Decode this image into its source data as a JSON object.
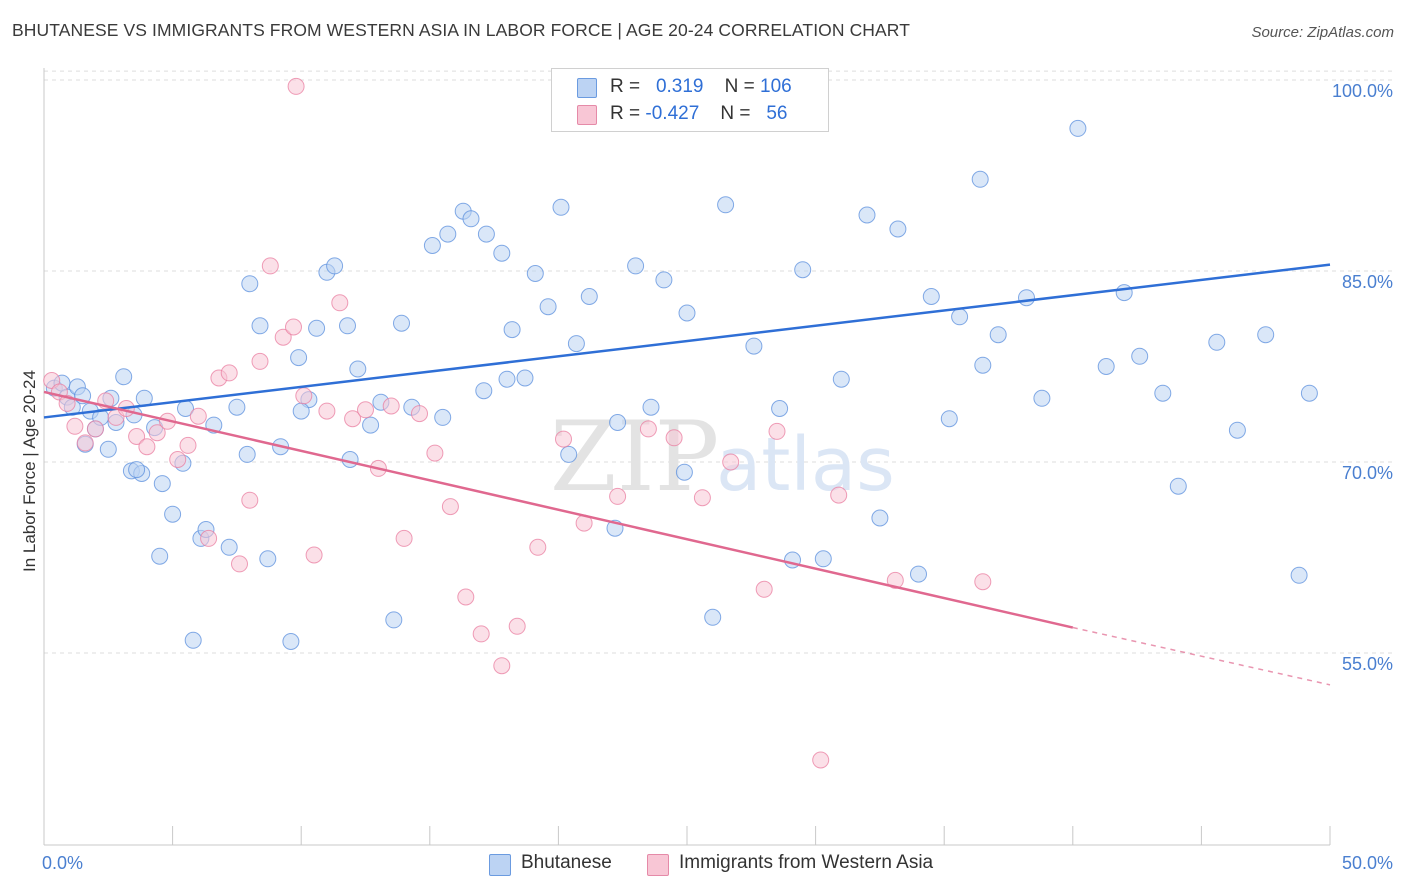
{
  "title": "BHUTANESE VS IMMIGRANTS FROM WESTERN ASIA IN LABOR FORCE | AGE 20-24 CORRELATION CHART",
  "source": "Source: ZipAtlas.com",
  "watermark": {
    "zip": "ZIP",
    "atlas": "atlas"
  },
  "legend": {
    "rows": [
      {
        "r_label": "R =",
        "r_value": "0.319",
        "n_label": "N =",
        "n_value": "106",
        "color": "#a9c8f2"
      },
      {
        "r_label": "R =",
        "r_value": "-0.427",
        "n_label": "N =",
        "n_value": "56",
        "color": "#f6b8cb"
      }
    ],
    "bottom": [
      "Bhutanese",
      "Immigrants from Western Asia"
    ]
  },
  "chart_data": {
    "type": "scatter",
    "title": "BHUTANESE VS IMMIGRANTS FROM WESTERN ASIA IN LABOR FORCE | AGE 20-24 CORRELATION CHART",
    "xlabel": "",
    "ylabel": "In Labor Force | Age 20-24",
    "xlim": [
      0,
      50
    ],
    "ylim": [
      40,
      102
    ],
    "x_tick_labels": [
      "0.0%",
      "50.0%"
    ],
    "y_ticks": [
      55,
      70,
      85,
      100
    ],
    "y_tick_labels": [
      "55.0%",
      "70.0%",
      "85.0%",
      "100.0%"
    ],
    "grid": true,
    "legend_position": "top-center",
    "series": [
      {
        "name": "Bhutanese",
        "color": "#5b8fde",
        "fill": "#bcd3f3",
        "trend": {
          "x0": 0,
          "y0": 73.5,
          "x1": 50,
          "y1": 85.5
        },
        "points": [
          [
            0.4,
            75.8
          ],
          [
            0.7,
            76.2
          ],
          [
            0.9,
            75.1
          ],
          [
            1.1,
            74.3
          ],
          [
            1.3,
            75.9
          ],
          [
            1.5,
            75.2
          ],
          [
            1.8,
            74.0
          ],
          [
            2.0,
            72.6
          ],
          [
            2.2,
            73.5
          ],
          [
            2.6,
            75.0
          ],
          [
            2.8,
            73.1
          ],
          [
            3.1,
            76.7
          ],
          [
            3.5,
            73.7
          ],
          [
            3.9,
            75.0
          ],
          [
            4.3,
            72.7
          ],
          [
            4.6,
            68.3
          ],
          [
            5.0,
            65.9
          ],
          [
            5.4,
            69.9
          ],
          [
            5.8,
            56.0
          ],
          [
            6.1,
            64.0
          ],
          [
            3.4,
            69.3
          ],
          [
            3.8,
            69.1
          ],
          [
            4.5,
            62.6
          ],
          [
            1.6,
            71.4
          ],
          [
            2.5,
            71.0
          ],
          [
            3.6,
            69.4
          ],
          [
            6.3,
            64.7
          ],
          [
            7.5,
            74.3
          ],
          [
            8.0,
            84.0
          ],
          [
            8.4,
            80.7
          ],
          [
            9.2,
            71.2
          ],
          [
            9.9,
            78.2
          ],
          [
            10.3,
            74.9
          ],
          [
            10.6,
            80.5
          ],
          [
            11.0,
            84.9
          ],
          [
            11.3,
            85.4
          ],
          [
            11.8,
            80.7
          ],
          [
            12.2,
            77.3
          ],
          [
            12.7,
            72.9
          ],
          [
            13.1,
            74.7
          ],
          [
            13.9,
            80.9
          ],
          [
            14.3,
            74.3
          ],
          [
            15.1,
            87.0
          ],
          [
            15.7,
            87.9
          ],
          [
            16.3,
            89.7
          ],
          [
            16.6,
            89.1
          ],
          [
            17.2,
            87.9
          ],
          [
            17.8,
            86.4
          ],
          [
            18.2,
            80.4
          ],
          [
            18.7,
            76.6
          ],
          [
            19.1,
            84.8
          ],
          [
            19.6,
            82.2
          ],
          [
            20.1,
            90.0
          ],
          [
            20.7,
            79.3
          ],
          [
            21.2,
            83.0
          ],
          [
            22.3,
            73.1
          ],
          [
            23.0,
            85.4
          ],
          [
            23.6,
            74.3
          ],
          [
            24.1,
            84.3
          ],
          [
            25.0,
            81.7
          ],
          [
            26.5,
            90.2
          ],
          [
            27.6,
            79.1
          ],
          [
            28.6,
            74.2
          ],
          [
            29.5,
            85.1
          ],
          [
            31.0,
            76.5
          ],
          [
            32.0,
            89.4
          ],
          [
            33.2,
            88.3
          ],
          [
            34.5,
            83.0
          ],
          [
            35.6,
            81.4
          ],
          [
            36.4,
            92.2
          ],
          [
            37.1,
            80.0
          ],
          [
            38.2,
            82.9
          ],
          [
            38.8,
            75.0
          ],
          [
            40.2,
            96.2
          ],
          [
            41.3,
            77.5
          ],
          [
            42.0,
            83.3
          ],
          [
            42.6,
            78.3
          ],
          [
            43.5,
            75.4
          ],
          [
            44.1,
            68.1
          ],
          [
            45.6,
            79.4
          ],
          [
            46.4,
            72.5
          ],
          [
            47.5,
            80.0
          ],
          [
            48.8,
            61.1
          ],
          [
            49.2,
            75.4
          ],
          [
            7.2,
            63.3
          ],
          [
            8.7,
            62.4
          ],
          [
            9.6,
            55.9
          ],
          [
            13.6,
            57.6
          ],
          [
            17.1,
            75.6
          ],
          [
            18.0,
            76.5
          ],
          [
            20.4,
            70.6
          ],
          [
            22.2,
            64.8
          ],
          [
            26.0,
            57.8
          ],
          [
            29.1,
            62.3
          ],
          [
            32.5,
            65.6
          ],
          [
            34.0,
            61.2
          ],
          [
            35.2,
            73.4
          ],
          [
            36.5,
            77.6
          ],
          [
            30.3,
            62.4
          ],
          [
            24.9,
            69.2
          ],
          [
            5.5,
            74.2
          ],
          [
            6.6,
            72.9
          ],
          [
            7.9,
            70.6
          ],
          [
            10.0,
            74.0
          ],
          [
            11.9,
            70.2
          ],
          [
            15.5,
            73.5
          ]
        ]
      },
      {
        "name": "Immigrants from Western Asia",
        "color": "#e97ea0",
        "fill": "#f8c6d5",
        "trend": {
          "x0": 0,
          "y0": 75.5,
          "x1": 40,
          "y1": 57.0,
          "dash_to_x": 50,
          "dash_to_y": 52.5
        },
        "points": [
          [
            0.3,
            76.4
          ],
          [
            0.6,
            75.5
          ],
          [
            0.9,
            74.6
          ],
          [
            1.2,
            72.8
          ],
          [
            1.6,
            71.5
          ],
          [
            2.0,
            72.6
          ],
          [
            2.4,
            74.8
          ],
          [
            2.8,
            73.5
          ],
          [
            3.2,
            74.2
          ],
          [
            3.6,
            72.0
          ],
          [
            4.0,
            71.2
          ],
          [
            4.4,
            72.3
          ],
          [
            4.8,
            73.2
          ],
          [
            5.2,
            70.2
          ],
          [
            5.6,
            71.3
          ],
          [
            6.0,
            73.6
          ],
          [
            6.4,
            64.0
          ],
          [
            6.8,
            76.6
          ],
          [
            7.2,
            77.0
          ],
          [
            7.6,
            62.0
          ],
          [
            8.0,
            67.0
          ],
          [
            8.4,
            77.9
          ],
          [
            8.8,
            85.4
          ],
          [
            9.3,
            79.8
          ],
          [
            9.7,
            80.6
          ],
          [
            10.1,
            75.2
          ],
          [
            10.5,
            62.7
          ],
          [
            11.0,
            74.0
          ],
          [
            11.5,
            82.5
          ],
          [
            12.0,
            73.4
          ],
          [
            12.5,
            74.1
          ],
          [
            13.0,
            69.5
          ],
          [
            13.5,
            74.4
          ],
          [
            14.0,
            64.0
          ],
          [
            14.6,
            73.8
          ],
          [
            15.2,
            70.7
          ],
          [
            15.8,
            66.5
          ],
          [
            16.4,
            59.4
          ],
          [
            17.0,
            56.5
          ],
          [
            17.8,
            54.0
          ],
          [
            18.4,
            57.1
          ],
          [
            19.2,
            63.3
          ],
          [
            20.2,
            71.8
          ],
          [
            21.0,
            65.2
          ],
          [
            22.3,
            67.3
          ],
          [
            23.5,
            72.6
          ],
          [
            24.5,
            71.9
          ],
          [
            25.6,
            67.2
          ],
          [
            26.7,
            70.0
          ],
          [
            28.0,
            60.0
          ],
          [
            28.5,
            72.4
          ],
          [
            30.2,
            46.6
          ],
          [
            30.9,
            67.4
          ],
          [
            33.1,
            60.7
          ],
          [
            36.5,
            60.6
          ],
          [
            9.8,
            99.5
          ]
        ]
      }
    ]
  }
}
